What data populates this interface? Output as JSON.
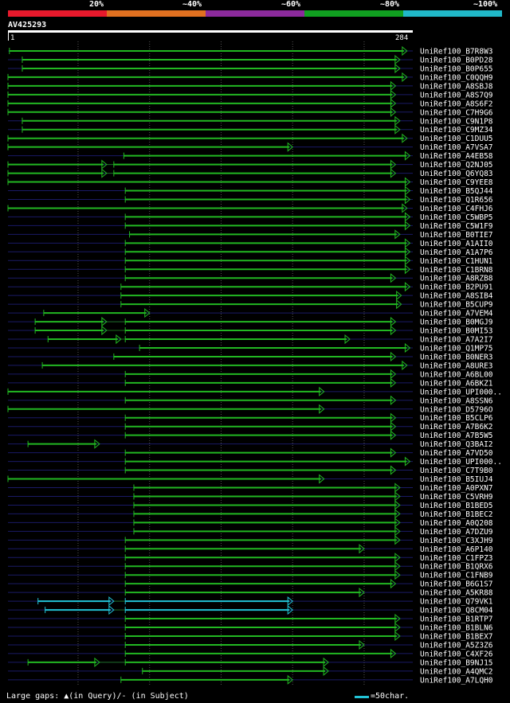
{
  "legend": {
    "labels": [
      "20%",
      "~40%",
      "~60%",
      "~80%",
      "~100%"
    ],
    "colors": [
      "#e8192c",
      "#e07020",
      "#8c2a9c",
      "#10a020",
      "#20b8c8"
    ]
  },
  "query": {
    "id": "AV425293",
    "start": "1",
    "end": "284"
  },
  "colors": {
    "hit": "#22b822",
    "hit_cyan": "#22c3d6",
    "connector": "#1c6c1c",
    "baseline": "#1a1a66",
    "grid": "#555555"
  },
  "hits": [
    {
      "name": "UniRef100_B7R8W3",
      "segs": [
        [
          2,
          280
        ]
      ]
    },
    {
      "name": "UniRef100_B0PD28",
      "segs": [
        [
          11,
          275
        ]
      ]
    },
    {
      "name": "UniRef100_B0P655",
      "segs": [
        [
          11,
          275
        ]
      ]
    },
    {
      "name": "UniRef100_C0QQH9",
      "segs": [
        [
          1,
          280
        ]
      ]
    },
    {
      "name": "UniRef100_A8SBJ8",
      "segs": [
        [
          1,
          272
        ]
      ]
    },
    {
      "name": "UniRef100_A8S7Q9",
      "segs": [
        [
          1,
          272
        ]
      ]
    },
    {
      "name": "UniRef100_A8S6F2",
      "segs": [
        [
          1,
          272
        ]
      ]
    },
    {
      "name": "UniRef100_C7H9G6",
      "segs": [
        [
          1,
          272
        ]
      ]
    },
    {
      "name": "UniRef100_C9N1P8",
      "segs": [
        [
          11,
          275
        ]
      ]
    },
    {
      "name": "UniRef100_C9MZ34",
      "segs": [
        [
          11,
          275
        ]
      ]
    },
    {
      "name": "UniRef100_C1DUU5",
      "segs": [
        [
          1,
          280
        ]
      ]
    },
    {
      "name": "UniRef100_A7VSA7",
      "segs": [
        [
          1,
          200
        ]
      ]
    },
    {
      "name": "UniRef100_A4EB58",
      "segs": [
        [
          82,
          282
        ]
      ]
    },
    {
      "name": "UniRef100_Q2NJ05",
      "segs": [
        [
          1,
          70
        ],
        [
          75,
          272
        ]
      ]
    },
    {
      "name": "UniRef100_Q6YQ83",
      "segs": [
        [
          1,
          70
        ],
        [
          75,
          272
        ]
      ]
    },
    {
      "name": "UniRef100_C9YEE8",
      "segs": [
        [
          1,
          282
        ]
      ]
    },
    {
      "name": "UniRef100_B5QJ44",
      "segs": [
        [
          83,
          282
        ]
      ]
    },
    {
      "name": "UniRef100_Q1R656",
      "segs": [
        [
          83,
          282
        ]
      ]
    },
    {
      "name": "UniRef100_C4FHJ6",
      "segs": [
        [
          1,
          280
        ]
      ]
    },
    {
      "name": "UniRef100_C5WBP5",
      "segs": [
        [
          83,
          282
        ]
      ]
    },
    {
      "name": "UniRef100_C5W1F9",
      "segs": [
        [
          83,
          282
        ]
      ]
    },
    {
      "name": "UniRef100_B0TIE7",
      "segs": [
        [
          86,
          275
        ]
      ]
    },
    {
      "name": "UniRef100_A1AII0",
      "segs": [
        [
          83,
          282
        ]
      ]
    },
    {
      "name": "UniRef100_A1A7P6",
      "segs": [
        [
          83,
          282
        ]
      ]
    },
    {
      "name": "UniRef100_C1HUN1",
      "segs": [
        [
          83,
          282
        ]
      ]
    },
    {
      "name": "UniRef100_C1BRN8",
      "segs": [
        [
          83,
          282
        ]
      ]
    },
    {
      "name": "UniRef100_A8RZB8",
      "segs": [
        [
          83,
          272
        ]
      ]
    },
    {
      "name": "UniRef100_B2PU91",
      "segs": [
        [
          80,
          282
        ]
      ]
    },
    {
      "name": "UniRef100_A8SIB4",
      "segs": [
        [
          80,
          276
        ]
      ]
    },
    {
      "name": "UniRef100_B5CUP9",
      "segs": [
        [
          80,
          276
        ]
      ]
    },
    {
      "name": "UniRef100_A7VEM4",
      "segs": [
        [
          26,
          100
        ]
      ]
    },
    {
      "name": "UniRef100_B0MGJ9",
      "segs": [
        [
          20,
          70
        ],
        [
          83,
          272
        ]
      ]
    },
    {
      "name": "UniRef100_B0MI53",
      "segs": [
        [
          20,
          70
        ],
        [
          83,
          272
        ]
      ]
    },
    {
      "name": "UniRef100_A7A2I7",
      "segs": [
        [
          29,
          80
        ],
        [
          83,
          240
        ]
      ]
    },
    {
      "name": "UniRef100_Q1MP75",
      "segs": [
        [
          93,
          282
        ]
      ]
    },
    {
      "name": "UniRef100_B0NER3",
      "segs": [
        [
          75,
          272
        ]
      ]
    },
    {
      "name": "UniRef100_A8URE3",
      "segs": [
        [
          25,
          280
        ]
      ]
    },
    {
      "name": "UniRef100_A6BL00",
      "segs": [
        [
          83,
          272
        ]
      ]
    },
    {
      "name": "UniRef100_A6BKZ1",
      "segs": [
        [
          83,
          272
        ]
      ]
    },
    {
      "name": "UniRef100_UPI000..",
      "segs": [
        [
          1,
          222
        ]
      ]
    },
    {
      "name": "UniRef100_A8SSN6",
      "segs": [
        [
          83,
          272
        ]
      ]
    },
    {
      "name": "UniRef100_D5796O",
      "segs": [
        [
          1,
          222
        ]
      ]
    },
    {
      "name": "UniRef100_B5CLP6",
      "segs": [
        [
          83,
          272
        ]
      ]
    },
    {
      "name": "UniRef100_A7B6K2",
      "segs": [
        [
          83,
          272
        ]
      ]
    },
    {
      "name": "UniRef100_A7B5W5",
      "segs": [
        [
          83,
          272
        ]
      ]
    },
    {
      "name": "UniRef100_Q3BAI2",
      "segs": [
        [
          15,
          65
        ]
      ]
    },
    {
      "name": "UniRef100_A7VD50",
      "segs": [
        [
          83,
          272
        ]
      ]
    },
    {
      "name": "UniRef100_UPI000..",
      "segs": [
        [
          83,
          282
        ]
      ]
    },
    {
      "name": "UniRef100_C7T9B0",
      "segs": [
        [
          83,
          272
        ]
      ]
    },
    {
      "name": "UniRef100_B5IUJ4",
      "segs": [
        [
          1,
          222
        ]
      ]
    },
    {
      "name": "UniRef100_A0PXN7",
      "segs": [
        [
          89,
          275
        ]
      ]
    },
    {
      "name": "UniRef100_C5VRH9",
      "segs": [
        [
          89,
          275
        ]
      ]
    },
    {
      "name": "UniRef100_B1BED5",
      "segs": [
        [
          89,
          275
        ]
      ]
    },
    {
      "name": "UniRef100_B1BEC2",
      "segs": [
        [
          89,
          275
        ]
      ]
    },
    {
      "name": "UniRef100_A0Q208",
      "segs": [
        [
          89,
          275
        ]
      ]
    },
    {
      "name": "UniRef100_A7DZU9",
      "segs": [
        [
          89,
          275
        ]
      ]
    },
    {
      "name": "UniRef100_C3XJH9",
      "segs": [
        [
          83,
          275
        ]
      ]
    },
    {
      "name": "UniRef100_A6P140",
      "segs": [
        [
          83,
          250
        ]
      ]
    },
    {
      "name": "UniRef100_C1FPZ3",
      "segs": [
        [
          83,
          275
        ]
      ]
    },
    {
      "name": "UniRef100_B1QRX6",
      "segs": [
        [
          83,
          275
        ]
      ]
    },
    {
      "name": "UniRef100_C1FNB9",
      "segs": [
        [
          83,
          275
        ]
      ]
    },
    {
      "name": "UniRef100_B6G1S7",
      "segs": [
        [
          83,
          272
        ]
      ]
    },
    {
      "name": "UniRef100_A5KR88",
      "segs": [
        [
          83,
          250
        ]
      ]
    },
    {
      "name": "UniRef100_Q79VK1",
      "segs": [
        [
          22,
          75
        ],
        [
          83,
          200
        ]
      ],
      "cyan": true
    },
    {
      "name": "UniRef100_Q8CM04",
      "segs": [
        [
          27,
          75
        ],
        [
          83,
          200
        ]
      ],
      "cyan": true
    },
    {
      "name": "UniRef100_B1RTP7",
      "segs": [
        [
          83,
          275
        ]
      ]
    },
    {
      "name": "UniRef100_B1BLN6",
      "segs": [
        [
          83,
          275
        ]
      ]
    },
    {
      "name": "UniRef100_B1BEX7",
      "segs": [
        [
          83,
          275
        ]
      ]
    },
    {
      "name": "UniRef100_A5Z3Z6",
      "segs": [
        [
          83,
          250
        ]
      ]
    },
    {
      "name": "UniRef100_C4XF26",
      "segs": [
        [
          83,
          272
        ]
      ]
    },
    {
      "name": "UniRef100_B9NJ15",
      "segs": [
        [
          15,
          65
        ],
        [
          83,
          225
        ]
      ]
    },
    {
      "name": "UniRef100_A4QMC2",
      "segs": [
        [
          95,
          225
        ]
      ]
    },
    {
      "name": "UniRef100_A7LQH0",
      "segs": [
        [
          80,
          200
        ]
      ]
    }
  ],
  "footer": {
    "gaps": "Large gaps: ▲(in Query)/- (in Subject)",
    "scale": "=50char."
  }
}
